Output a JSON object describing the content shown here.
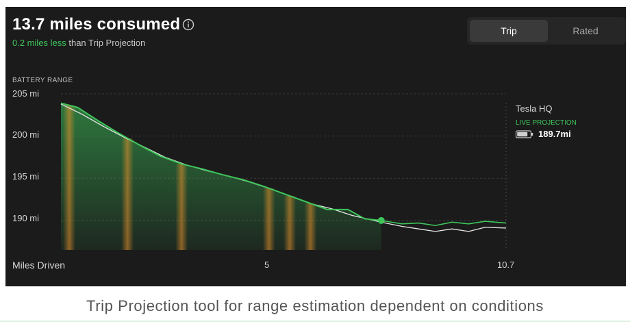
{
  "header": {
    "title": "13.7 miles consumed",
    "comparison_highlight": "0.2 miles less",
    "comparison_rest": " than Trip Projection",
    "info_icon": "info-icon"
  },
  "tabs": [
    {
      "label": "Trip",
      "active": true
    },
    {
      "label": "Rated",
      "active": false
    }
  ],
  "destination": {
    "name": "Tesla HQ",
    "status": "LIVE PROJECTION",
    "projected_range": "189.7mi",
    "icon": "battery-icon"
  },
  "caption": "Trip Projection tool for range estimation dependent on conditions",
  "colors": {
    "accent_green": "#3dc45a",
    "actual_line": "#e8e8e8",
    "warning_orange": "#e8922b",
    "background": "#1b1b1b"
  },
  "chart_data": {
    "type": "area",
    "ylabel": "BATTERY RANGE",
    "xlabel": "Miles Driven",
    "y_tick_labels": [
      "205 mi",
      "200 mi",
      "195 mi",
      "190 mi"
    ],
    "y_ticks": [
      205,
      200,
      195,
      190
    ],
    "x_tick_labels": [
      "5",
      "10.7"
    ],
    "x_ticks": [
      5,
      10.7
    ],
    "xlim": [
      0,
      10.7
    ],
    "ylim": [
      186.5,
      205
    ],
    "series": [
      {
        "role": "driven",
        "x": [
          0,
          0.4,
          0.9,
          1.4,
          1.9,
          2.4,
          2.9,
          3.4,
          3.9,
          4.4,
          4.9,
          5.4,
          5.9,
          6.4,
          6.9,
          7.3,
          7.7
        ],
        "y": [
          203.9,
          203.4,
          201.8,
          200.3,
          198.9,
          197.6,
          196.7,
          196.1,
          195.4,
          194.8,
          194.0,
          193.1,
          192.2,
          191.3,
          191.3,
          190.2,
          190.0
        ]
      },
      {
        "role": "actual",
        "x": [
          0,
          0.5,
          1.0,
          1.5,
          2.0,
          2.5,
          3.0,
          3.5,
          4.0,
          4.5,
          5.0,
          5.5,
          6.0,
          6.5,
          7.0,
          7.7,
          8.2,
          8.6,
          9.0,
          9.4,
          9.8,
          10.2,
          10.7
        ],
        "y": [
          203.8,
          202.6,
          201.2,
          199.9,
          198.7,
          197.5,
          196.6,
          195.9,
          195.3,
          194.6,
          193.8,
          192.9,
          192.0,
          191.4,
          190.6,
          189.8,
          189.3,
          189.0,
          188.7,
          189.0,
          188.7,
          189.2,
          189.1
        ]
      },
      {
        "role": "projection",
        "x": [
          7.7,
          8.2,
          8.6,
          9.0,
          9.4,
          9.8,
          10.2,
          10.7
        ],
        "y": [
          190.0,
          189.6,
          189.7,
          189.4,
          189.8,
          189.6,
          189.9,
          189.7
        ]
      }
    ],
    "point": {
      "x": 7.7,
      "y": 190.0
    },
    "high_consumption_bands": [
      0.2,
      1.6,
      2.9,
      5.0,
      5.5,
      6.0
    ],
    "grid": true
  }
}
